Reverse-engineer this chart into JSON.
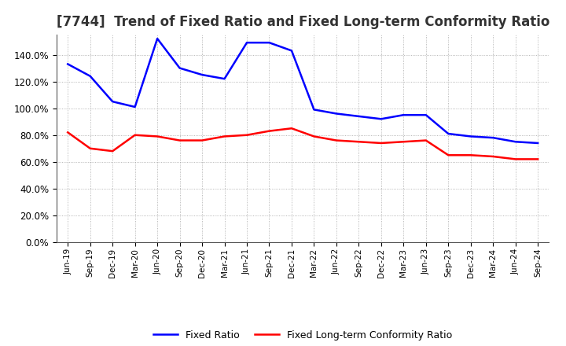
{
  "title": "[7744]  Trend of Fixed Ratio and Fixed Long-term Conformity Ratio",
  "labels": [
    "Jun-19",
    "Sep-19",
    "Dec-19",
    "Mar-20",
    "Jun-20",
    "Sep-20",
    "Dec-20",
    "Mar-21",
    "Jun-21",
    "Sep-21",
    "Dec-21",
    "Mar-22",
    "Jun-22",
    "Sep-22",
    "Dec-22",
    "Mar-23",
    "Jun-23",
    "Sep-23",
    "Dec-23",
    "Mar-24",
    "Jun-24",
    "Sep-24"
  ],
  "fixed_ratio": [
    133,
    124,
    105,
    101,
    152,
    130,
    125,
    122,
    149,
    149,
    143,
    99,
    96,
    94,
    92,
    95,
    95,
    81,
    79,
    78,
    75,
    74
  ],
  "fixed_lt_ratio": [
    82,
    70,
    68,
    80,
    79,
    76,
    76,
    79,
    80,
    83,
    85,
    79,
    76,
    75,
    74,
    75,
    76,
    65,
    65,
    64,
    62,
    62
  ],
  "fixed_ratio_color": "#0000FF",
  "fixed_lt_ratio_color": "#FF0000",
  "ylim": [
    0,
    155
  ],
  "yticks": [
    0,
    20,
    40,
    60,
    80,
    100,
    120,
    140
  ],
  "background_color": "#FFFFFF",
  "grid_color": "#999999",
  "title_fontsize": 12,
  "legend_labels": [
    "Fixed Ratio",
    "Fixed Long-term Conformity Ratio"
  ]
}
